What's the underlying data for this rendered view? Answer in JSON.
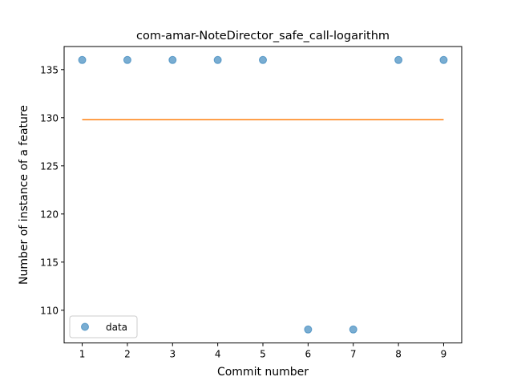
{
  "chart_data": {
    "type": "scatter",
    "title": "com-amar-NoteDirector_safe_call-logarithm",
    "xlabel": "Commit number",
    "ylabel": "Number of instance of a feature",
    "xlim": [
      0.6,
      9.4
    ],
    "ylim": [
      106.6,
      137.4
    ],
    "x_ticks": [
      1,
      2,
      3,
      4,
      5,
      6,
      7,
      8,
      9
    ],
    "y_ticks": [
      110,
      115,
      120,
      125,
      130,
      135
    ],
    "grid": false,
    "legend_position": "lower-left",
    "series": [
      {
        "name": "data",
        "kind": "scatter",
        "color": "#1f77b4",
        "x": [
          1,
          2,
          3,
          4,
          5,
          6,
          7,
          8,
          9
        ],
        "y": [
          136,
          136,
          136,
          136,
          136,
          108,
          108,
          136,
          136
        ]
      },
      {
        "kind": "line",
        "color": "#ff7f0e",
        "x": [
          1,
          9
        ],
        "y": [
          129.8,
          129.8
        ]
      }
    ]
  }
}
